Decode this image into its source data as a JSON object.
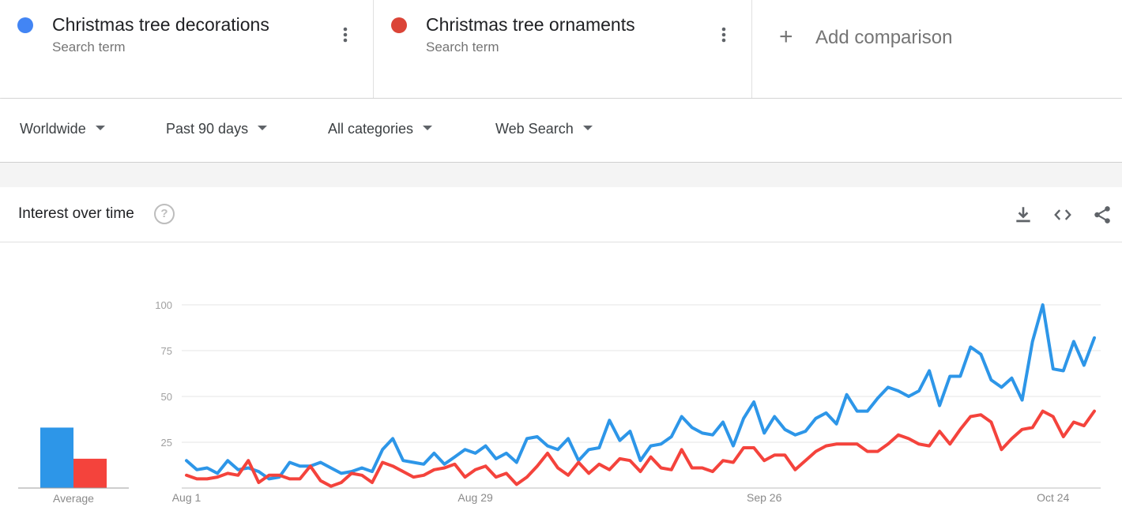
{
  "terms": [
    {
      "name": "Christmas tree decorations",
      "sub": "Search term",
      "color": "#4285f4"
    },
    {
      "name": "Christmas tree ornaments",
      "sub": "Search term",
      "color": "#db4437"
    }
  ],
  "add_comparison": {
    "plus": "+",
    "label": "Add comparison"
  },
  "filters": {
    "region": "Worldwide",
    "time": "Past 90 days",
    "category": "All categories",
    "property": "Web Search"
  },
  "card": {
    "title": "Interest over time",
    "help": "?",
    "icons": [
      "download-icon",
      "embed-code-icon",
      "share-icon"
    ]
  },
  "chart_data": {
    "type": "line",
    "ylim": [
      0,
      100
    ],
    "yticks": [
      25,
      50,
      75,
      100
    ],
    "grid": true,
    "x_labels": [
      "Aug 1",
      "Aug 29",
      "Sep 26",
      "Oct 24"
    ],
    "x_label_indices": [
      0,
      28,
      56,
      84
    ],
    "series": [
      {
        "name": "Christmas tree decorations",
        "color": "#2d96e8",
        "average": 33,
        "values": [
          15,
          10,
          11,
          8,
          15,
          10,
          11,
          9,
          5,
          6,
          14,
          12,
          12,
          14,
          11,
          8,
          9,
          11,
          9,
          21,
          27,
          15,
          14,
          13,
          19,
          13,
          17,
          21,
          19,
          23,
          16,
          19,
          14,
          27,
          28,
          23,
          21,
          27,
          15,
          21,
          22,
          37,
          26,
          31,
          15,
          23,
          24,
          28,
          39,
          33,
          30,
          29,
          36,
          23,
          38,
          47,
          30,
          39,
          32,
          29,
          31,
          38,
          41,
          35,
          51,
          42,
          42,
          49,
          55,
          53,
          50,
          53,
          64,
          45,
          61,
          61,
          77,
          73,
          59,
          55,
          60,
          48,
          80,
          100,
          65,
          64,
          80,
          67,
          82
        ]
      },
      {
        "name": "Christmas tree ornaments",
        "color": "#f4433c",
        "average": 16,
        "values": [
          7,
          5,
          5,
          6,
          8,
          7,
          15,
          3,
          7,
          7,
          5,
          5,
          12,
          4,
          1,
          3,
          8,
          7,
          3,
          14,
          12,
          9,
          6,
          7,
          10,
          11,
          13,
          6,
          10,
          12,
          6,
          8,
          2,
          6,
          12,
          19,
          11,
          7,
          14,
          8,
          13,
          10,
          16,
          15,
          9,
          17,
          11,
          10,
          21,
          11,
          11,
          9,
          15,
          14,
          22,
          22,
          15,
          18,
          18,
          10,
          15,
          20,
          23,
          24,
          24,
          24,
          20,
          20,
          24,
          29,
          27,
          24,
          23,
          31,
          24,
          32,
          39,
          40,
          36,
          21,
          27,
          32,
          33,
          42,
          39,
          28,
          36,
          34,
          42
        ]
      }
    ]
  }
}
